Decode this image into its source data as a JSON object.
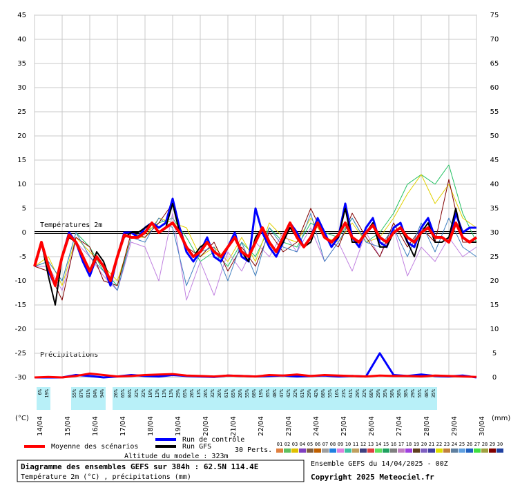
{
  "chart_data": {
    "type": "line",
    "title": "Diagramme des ensembles GEFS sur 384h : 62.5N 114.4E",
    "subtitle": "Température 2m (°C) , précipitations (mm)",
    "run_label": "Ensemble GEFS du 14/04/2025 - 00Z",
    "copyright": "Copyright 2025 Meteociel.fr",
    "altitude": "Altitude du modele : 323m",
    "y_label": "(°C)",
    "y2_label": "(mm)",
    "temperature_label": "Températures 2m",
    "precipitation_label": "Précipitations",
    "perturbations_title": "30 Perts.",
    "reference_line": 0,
    "grid": true,
    "xlim": [
      0,
      384
    ],
    "ylim": [
      -30,
      45
    ],
    "y2lim": [
      0,
      75
    ],
    "yticks": [
      -30,
      -25,
      -20,
      -15,
      -10,
      -5,
      0,
      5,
      10,
      15,
      20,
      25,
      30,
      35,
      40,
      45
    ],
    "y2ticks": [
      0,
      5,
      10,
      15,
      20,
      25,
      30,
      35,
      40,
      45,
      50,
      55,
      60,
      65,
      70,
      75
    ],
    "xticks": [
      {
        "value": 0,
        "label": "14/04"
      },
      {
        "value": 24,
        "label": "15/04"
      },
      {
        "value": 48,
        "label": "16/04"
      },
      {
        "value": 72,
        "label": "17/04"
      },
      {
        "value": 96,
        "label": "18/04"
      },
      {
        "value": 120,
        "label": "19/04"
      },
      {
        "value": 144,
        "label": "20/04"
      },
      {
        "value": 168,
        "label": "21/04"
      },
      {
        "value": 192,
        "label": "22/04"
      },
      {
        "value": 216,
        "label": "23/04"
      },
      {
        "value": 240,
        "label": "24/04"
      },
      {
        "value": 264,
        "label": "25/04"
      },
      {
        "value": 288,
        "label": "26/04"
      },
      {
        "value": 312,
        "label": "27/04"
      },
      {
        "value": 336,
        "label": "28/04"
      },
      {
        "value": 360,
        "label": "29/04"
      },
      {
        "value": 384,
        "label": "30/04"
      }
    ],
    "x": [
      0,
      6,
      12,
      18,
      24,
      30,
      36,
      42,
      48,
      54,
      60,
      66,
      72,
      78,
      84,
      90,
      96,
      102,
      108,
      114,
      120,
      126,
      132,
      138,
      144,
      150,
      156,
      162,
      168,
      174,
      180,
      186,
      192,
      198,
      204,
      210,
      216,
      222,
      228,
      234,
      240,
      246,
      252,
      258,
      264,
      270,
      276,
      282,
      288,
      294,
      300,
      306,
      312,
      318,
      324,
      330,
      336,
      342,
      348,
      354,
      360,
      366,
      372,
      378,
      384
    ],
    "series": [
      {
        "name": "Run de contrôle",
        "color": "#0000ff",
        "width": 3,
        "values": [
          -7,
          -2,
          -8,
          -11,
          -5,
          0,
          -2,
          -6,
          -9,
          -5,
          -7,
          -11,
          -5,
          0,
          0,
          -1,
          1,
          2,
          1,
          2,
          7,
          1,
          -4,
          -6,
          -4,
          -1,
          -5,
          -6,
          -3,
          0,
          -5,
          -6,
          5,
          0,
          -3,
          -5,
          -2,
          2,
          0,
          -3,
          -1,
          3,
          0,
          -3,
          -1,
          6,
          -1,
          -3,
          1,
          3,
          -2,
          -3,
          1,
          2,
          -2,
          -3,
          1,
          3,
          -1,
          -1,
          -2,
          4,
          0,
          1,
          1
        ]
      },
      {
        "name": "Run GFS",
        "color": "#000000",
        "width": 2,
        "values": [
          -7,
          -2,
          -9,
          -15,
          -5,
          -1,
          -2,
          -5,
          -8,
          -4,
          -6,
          -10,
          -5,
          -1,
          0,
          0,
          1,
          2,
          0,
          1,
          6,
          0,
          -3,
          -5,
          -3,
          -2,
          -4,
          -5,
          -3,
          -1,
          -4,
          -6,
          -1,
          1,
          -2,
          -4,
          -2,
          1,
          -1,
          -3,
          -2,
          2,
          -1,
          -2,
          -1,
          5,
          -2,
          -2,
          0,
          2,
          -3,
          -3,
          0,
          1,
          -2,
          -5,
          0,
          2,
          -2,
          -2,
          -1,
          5,
          -1,
          -2,
          -2
        ]
      },
      {
        "name": "Moyenne des scénarios",
        "color": "#ff0000",
        "width": 4,
        "values": [
          -7,
          -2,
          -7,
          -11,
          -5,
          -0.5,
          -2,
          -5,
          -8,
          -5,
          -7,
          -10,
          -5,
          -0.5,
          -1,
          -1,
          0,
          2,
          0,
          1,
          2,
          0,
          -3,
          -5,
          -4,
          -2,
          -4,
          -5,
          -3,
          -1,
          -4,
          -5,
          -2,
          1,
          -2,
          -4,
          -1,
          2,
          -1,
          -3,
          -1,
          2,
          -1,
          -2,
          -0.5,
          2,
          -1,
          -2,
          0,
          1.5,
          -1,
          -2,
          0,
          1,
          -1,
          -2,
          0,
          1,
          -1,
          -1,
          -2,
          2,
          -1,
          -2,
          -1
        ]
      }
    ],
    "members": [
      {
        "color": "#20c060",
        "x": [
          0,
          12,
          24,
          36,
          48,
          60,
          72,
          84,
          96,
          108,
          120,
          132,
          144,
          156,
          168,
          180,
          192,
          204,
          216,
          228,
          240,
          252,
          264,
          276,
          288,
          300,
          312,
          324,
          336,
          348,
          360,
          372,
          384
        ],
        "values": [
          -7,
          -6,
          -10,
          0,
          -3,
          -8,
          -11,
          -1,
          0,
          2,
          3,
          -1,
          -6,
          -4,
          -7,
          -2,
          -5,
          1,
          -2,
          -3,
          2,
          0,
          -1,
          3,
          -2,
          0,
          4,
          10,
          12,
          10,
          14,
          4,
          -2
        ]
      },
      {
        "color": "#e0d000",
        "x": [
          0,
          12,
          24,
          36,
          48,
          60,
          72,
          84,
          96,
          108,
          120,
          132,
          144,
          156,
          168,
          180,
          192,
          204,
          216,
          228,
          240,
          252,
          264,
          276,
          288,
          300,
          312,
          324,
          336,
          348,
          360,
          372,
          384
        ],
        "values": [
          -7,
          -5,
          -11,
          -1,
          -4,
          -7,
          -10,
          -1,
          -1,
          3,
          2,
          1,
          -5,
          -3,
          -6,
          -1,
          -6,
          2,
          -1,
          -2,
          3,
          -1,
          -2,
          2,
          -2,
          -1,
          3,
          8,
          12,
          6,
          10,
          3,
          1
        ]
      },
      {
        "color": "#c080e0",
        "x": [
          0,
          12,
          24,
          36,
          48,
          60,
          72,
          84,
          96,
          108,
          120,
          132,
          144,
          156,
          168,
          180,
          192,
          204,
          216,
          228,
          240,
          252,
          264,
          276,
          288,
          300,
          312,
          324,
          336,
          348,
          360,
          372,
          384
        ],
        "values": [
          -7,
          -7,
          -12,
          -2,
          -5,
          -9,
          -12,
          -2,
          -3,
          -10,
          4,
          -14,
          -6,
          -13,
          -4,
          -8,
          -2,
          -5,
          0,
          -4,
          1,
          -6,
          -2,
          -8,
          0,
          -5,
          1,
          -9,
          -3,
          -6,
          -1,
          -5,
          -3
        ]
      },
      {
        "color": "#800000",
        "x": [
          0,
          12,
          24,
          36,
          48,
          60,
          72,
          84,
          96,
          108,
          120,
          132,
          144,
          156,
          168,
          180,
          192,
          204,
          216,
          228,
          240,
          252,
          264,
          276,
          288,
          300,
          312,
          324,
          336,
          348,
          360,
          372,
          384
        ],
        "values": [
          -7,
          -8,
          -14,
          -1,
          -3,
          -10,
          -11,
          0,
          -1,
          2,
          6,
          -3,
          -5,
          -2,
          -8,
          -3,
          -7,
          0,
          -4,
          -2,
          5,
          -1,
          -3,
          4,
          -1,
          -5,
          2,
          -3,
          1,
          -2,
          11,
          -2,
          -2
        ]
      },
      {
        "color": "#4080c0",
        "x": [
          0,
          12,
          24,
          36,
          48,
          60,
          72,
          84,
          96,
          108,
          120,
          132,
          144,
          156,
          168,
          180,
          192,
          204,
          216,
          228,
          240,
          252,
          264,
          276,
          288,
          300,
          312,
          324,
          336,
          348,
          360,
          372,
          384
        ],
        "values": [
          -7,
          -6,
          -10,
          0,
          -5,
          -8,
          -12,
          -1,
          -2,
          3,
          1,
          -11,
          -4,
          -3,
          -10,
          -2,
          -9,
          1,
          -3,
          -4,
          4,
          -6,
          -2,
          3,
          -2,
          -3,
          1,
          -5,
          2,
          -4,
          3,
          -3,
          -5
        ]
      }
    ],
    "precipitation": [
      {
        "color": "#0000ff",
        "width": 3,
        "x": [
          0,
          12,
          24,
          36,
          48,
          60,
          72,
          84,
          96,
          108,
          120,
          132,
          144,
          156,
          168,
          180,
          192,
          204,
          216,
          228,
          240,
          252,
          264,
          276,
          288,
          300,
          312,
          324,
          336,
          348,
          360,
          372,
          384
        ],
        "values": [
          0,
          0,
          0,
          0.5,
          0.3,
          0,
          0.2,
          0.5,
          0.3,
          0.2,
          0.5,
          0.3,
          0.2,
          0.1,
          0.4,
          0.3,
          0.2,
          0.3,
          0.4,
          0.2,
          0.3,
          0.4,
          0.2,
          0.3,
          0.2,
          5,
          0.5,
          0.3,
          0.6,
          0.3,
          0.2,
          0.4,
          0
        ]
      },
      {
        "color": "#ff0000",
        "width": 3,
        "x": [
          0,
          12,
          24,
          36,
          48,
          60,
          72,
          84,
          96,
          108,
          120,
          132,
          144,
          156,
          168,
          180,
          192,
          204,
          216,
          228,
          240,
          252,
          264,
          276,
          288,
          300,
          312,
          324,
          336,
          348,
          360,
          372,
          384
        ],
        "values": [
          0,
          0.1,
          0,
          0.3,
          0.8,
          0.5,
          0.2,
          0.3,
          0.5,
          0.6,
          0.7,
          0.4,
          0.3,
          0.2,
          0.4,
          0.3,
          0.2,
          0.5,
          0.4,
          0.6,
          0.3,
          0.5,
          0.4,
          0.3,
          0.2,
          0.4,
          0.3,
          0.3,
          0.2,
          0.4,
          0.3,
          0.2,
          0.1
        ]
      }
    ],
    "precip_probability": {
      "x": [
        6,
        12,
        36,
        42,
        48,
        54,
        60,
        72,
        78,
        84,
        90,
        96,
        102,
        108,
        114,
        120,
        126,
        132,
        138,
        144,
        150,
        156,
        162,
        168,
        174,
        180,
        186,
        192,
        198,
        204,
        210,
        216,
        222,
        228,
        234,
        240,
        246,
        252,
        258,
        264,
        270,
        276,
        282,
        288,
        294,
        300,
        306,
        312,
        318,
        324,
        330,
        336,
        342,
        348
      ],
      "values": [
        6,
        19,
        55,
        87,
        81,
        84,
        94,
        26,
        65,
        84,
        32,
        32,
        10,
        13,
        13,
        13,
        29,
        65,
        26,
        13,
        26,
        32,
        26,
        61,
        65,
        26,
        55,
        68,
        19,
        35,
        48,
        47,
        42,
        32,
        61,
        29,
        42,
        68,
        55,
        16,
        23,
        61,
        29,
        32,
        68,
        29,
        35,
        58,
        58,
        38,
        29,
        55,
        48,
        35
      ],
      "value_labels": [
        "6%",
        "19%",
        "55%",
        "87%",
        "81%",
        "84%",
        "94%",
        "26%",
        "65%",
        "84%",
        "32%",
        "32%",
        "10%",
        "13%",
        "13%",
        "13%",
        "29%",
        "65%",
        "26%",
        "13%",
        "26%",
        "32%",
        "26%",
        "61%",
        "65%",
        "26%",
        "55%",
        "68%",
        "19%",
        "35%",
        "48%",
        "47%",
        "42%",
        "32%",
        "61%",
        "29%",
        "42%",
        "68%",
        "55%",
        "16%",
        "23%",
        "61%",
        "29%",
        "32%",
        "68%",
        "29%",
        "35%",
        "58%",
        "58%",
        "38%",
        "29%",
        "55%",
        "48%",
        "35%"
      ]
    },
    "perturbations": [
      {
        "label": "01",
        "color": "#e08040"
      },
      {
        "label": "02",
        "color": "#60c060"
      },
      {
        "label": "03",
        "color": "#e0c000"
      },
      {
        "label": "04",
        "color": "#8040c0"
      },
      {
        "label": "05",
        "color": "#806040"
      },
      {
        "label": "06",
        "color": "#c06000"
      },
      {
        "label": "07",
        "color": "#a0a0a0"
      },
      {
        "label": "08",
        "color": "#2080e0"
      },
      {
        "label": "09",
        "color": "#e080e0"
      },
      {
        "label": "10",
        "color": "#40c0a0"
      },
      {
        "label": "11",
        "color": "#c0a060"
      },
      {
        "label": "12",
        "color": "#404080"
      },
      {
        "label": "13",
        "color": "#e04040"
      },
      {
        "label": "14",
        "color": "#60e060"
      },
      {
        "label": "15",
        "color": "#20a060"
      },
      {
        "label": "16",
        "color": "#808080"
      },
      {
        "label": "17",
        "color": "#c080c0"
      },
      {
        "label": "18",
        "color": "#a040e0"
      },
      {
        "label": "19",
        "color": "#604020"
      },
      {
        "label": "20",
        "color": "#8060c0"
      },
      {
        "label": "21",
        "color": "#4040a0"
      },
      {
        "label": "22",
        "color": "#e0e000"
      },
      {
        "label": "23",
        "color": "#c08040"
      },
      {
        "label": "24",
        "color": "#6080a0"
      },
      {
        "label": "25",
        "color": "#60a0e0"
      },
      {
        "label": "26",
        "color": "#2060c0"
      },
      {
        "label": "27",
        "color": "#40e040"
      },
      {
        "label": "28",
        "color": "#a0a040"
      },
      {
        "label": "29",
        "color": "#800000"
      },
      {
        "label": "30",
        "color": "#2040a0"
      }
    ]
  }
}
